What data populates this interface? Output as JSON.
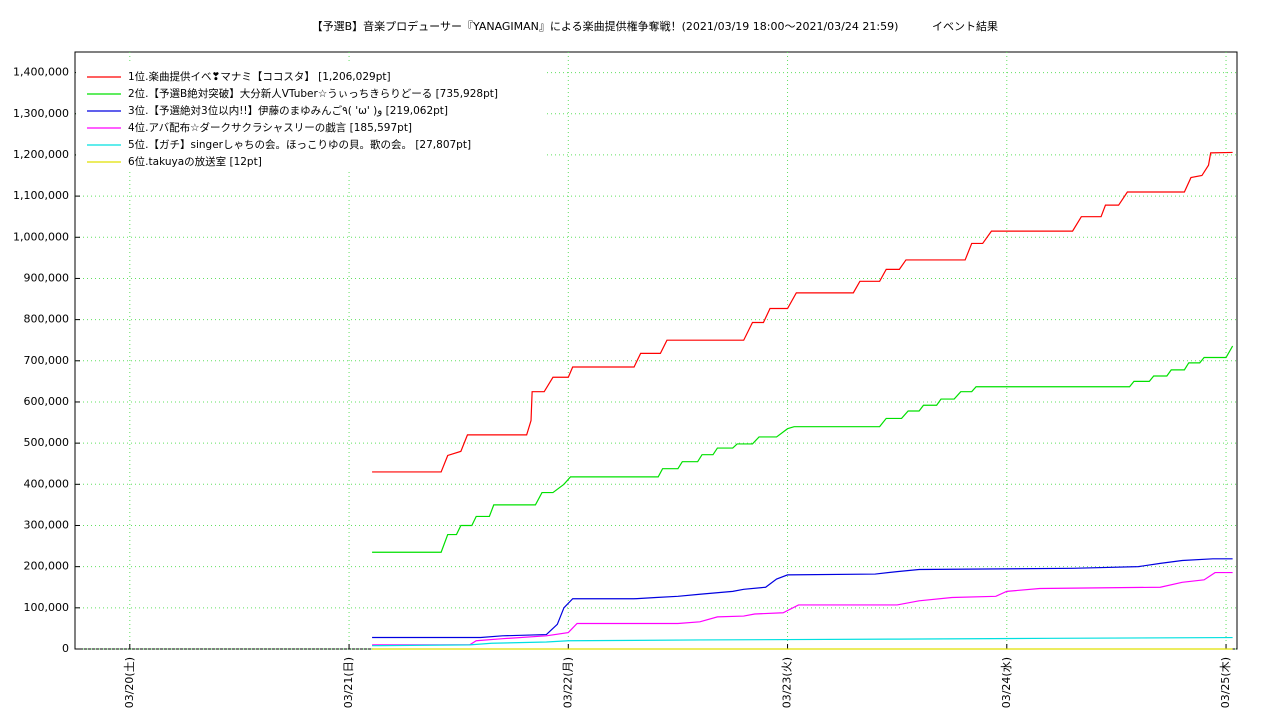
{
  "chart_data": {
    "type": "line",
    "title": "【予選B】音楽プロデューサー『YANAGIMAN』による楽曲提供権争奪戦！(2021/03/19 18:00〜2021/03/24 21:59)",
    "subtitle": "イベント結果",
    "xlim": [
      19.75,
      25.05
    ],
    "xticks": [
      {
        "value": 20,
        "label": "03/20(土)"
      },
      {
        "value": 21,
        "label": "03/21(日)"
      },
      {
        "value": 22,
        "label": "03/22(月)"
      },
      {
        "value": 23,
        "label": "03/23(火)"
      },
      {
        "value": 24,
        "label": "03/24(水)"
      },
      {
        "value": 25,
        "label": "03/25(木)"
      }
    ],
    "ylim": [
      0,
      1450000
    ],
    "yticks": [
      0,
      {
        "value": 100000,
        "label": "100,000"
      },
      {
        "value": 200000,
        "label": "200,000"
      },
      {
        "value": 300000,
        "label": "300,000"
      },
      {
        "value": 400000,
        "label": "400,000"
      },
      {
        "value": 500000,
        "label": "500,000"
      },
      {
        "value": 600000,
        "label": "600,000"
      },
      {
        "value": 700000,
        "label": "700,000"
      },
      {
        "value": 800000,
        "label": "800,000"
      },
      {
        "value": 900000,
        "label": "900,000"
      },
      {
        "value": 1000000,
        "label": "1,000,000"
      },
      {
        "value": 1100000,
        "label": "1,100,000"
      },
      {
        "value": 1200000,
        "label": "1,200,000"
      },
      {
        "value": 1300000,
        "label": "1,300,000"
      },
      {
        "value": 1400000,
        "label": "1,400,000"
      }
    ],
    "grid": true,
    "legend": "upper left",
    "series": [
      {
        "name": "1位.楽曲提供イベ❣マナミ【ココスタ】 [1,206,029pt]",
        "color": "#ff0000",
        "x": [
          21.105,
          21.42,
          21.45,
          21.51,
          21.54,
          21.81,
          21.83,
          21.835,
          21.89,
          21.93,
          22.0,
          22.02,
          22.3,
          22.33,
          22.42,
          22.45,
          22.8,
          22.84,
          22.89,
          22.92,
          23.0,
          23.04,
          23.3,
          23.33,
          23.42,
          23.45,
          23.51,
          23.54,
          23.81,
          23.84,
          23.89,
          23.93,
          24.3,
          24.34,
          24.43,
          24.45,
          24.51,
          24.55,
          24.81,
          24.84,
          24.89,
          24.92,
          24.93,
          25.03
        ],
        "values": [
          430000,
          430000,
          470000,
          480000,
          520000,
          520000,
          555000,
          625000,
          625000,
          660000,
          660000,
          685000,
          685000,
          718000,
          718000,
          750000,
          750000,
          793000,
          793000,
          827000,
          827000,
          865000,
          865000,
          893000,
          893000,
          922000,
          922000,
          945000,
          945000,
          985000,
          985000,
          1015000,
          1015000,
          1050000,
          1050000,
          1078000,
          1078000,
          1110000,
          1110000,
          1145000,
          1150000,
          1175000,
          1205000,
          1206029
        ]
      },
      {
        "name": "2位.【予選B絶対突破】大分新人VTuber☆うぃっちきらりどーる [735,928pt]",
        "color": "#00e000",
        "x": [
          21.105,
          21.42,
          21.45,
          21.49,
          21.51,
          21.56,
          21.58,
          21.64,
          21.66,
          21.85,
          21.88,
          21.93,
          21.98,
          22.01,
          22.41,
          22.43,
          22.5,
          22.52,
          22.59,
          22.61,
          22.66,
          22.68,
          22.75,
          22.77,
          22.84,
          22.87,
          22.95,
          23.0,
          23.03,
          23.42,
          23.45,
          23.52,
          23.55,
          23.6,
          23.62,
          23.68,
          23.7,
          23.76,
          23.79,
          23.84,
          23.86,
          24.56,
          24.58,
          24.65,
          24.67,
          24.73,
          24.75,
          24.81,
          24.83,
          24.88,
          24.9,
          25.0,
          25.03
        ],
        "values": [
          235000,
          235000,
          278000,
          278000,
          300000,
          300000,
          322000,
          322000,
          350000,
          350000,
          380000,
          380000,
          400000,
          418000,
          418000,
          438000,
          438000,
          455000,
          455000,
          472000,
          472000,
          488000,
          488000,
          498000,
          498000,
          515000,
          515000,
          535000,
          540000,
          540000,
          560000,
          560000,
          578000,
          578000,
          592000,
          592000,
          607000,
          607000,
          625000,
          625000,
          637000,
          637000,
          650000,
          650000,
          663000,
          663000,
          678000,
          678000,
          695000,
          695000,
          708000,
          708000,
          735928
        ]
      },
      {
        "name": "3位.【予選絶対3位以内!!】伊藤のまゆみんご٩( 'ω' )و [219,062pt]",
        "color": "#0000e0",
        "x": [
          21.105,
          21.6,
          21.7,
          21.9,
          21.95,
          21.98,
          22.02,
          22.3,
          22.4,
          22.5,
          22.6,
          22.75,
          22.8,
          22.9,
          22.95,
          23.0,
          23.4,
          23.5,
          23.6,
          24.3,
          24.6,
          24.7,
          24.8,
          24.94,
          25.03
        ],
        "values": [
          28000,
          28000,
          32000,
          35000,
          60000,
          100000,
          122000,
          122000,
          125000,
          128000,
          133000,
          140000,
          145000,
          150000,
          170000,
          180000,
          182000,
          188000,
          193000,
          196000,
          200000,
          208000,
          215000,
          219062,
          219062
        ]
      },
      {
        "name": "4位.アバ配布☆ダークサクラシャスリーの戯言 [185,597pt]",
        "color": "#ff00ff",
        "x": [
          21.105,
          21.55,
          21.58,
          21.7,
          21.9,
          22.0,
          22.04,
          22.5,
          22.6,
          22.68,
          22.8,
          22.85,
          22.98,
          23.05,
          23.5,
          23.6,
          23.75,
          23.95,
          24.0,
          24.15,
          24.7,
          24.8,
          24.9,
          24.95,
          25.03
        ],
        "values": [
          10000,
          10000,
          20000,
          25000,
          32000,
          40000,
          62000,
          62000,
          66000,
          78000,
          80000,
          85000,
          88000,
          107000,
          107000,
          117000,
          125000,
          128000,
          140000,
          147000,
          150000,
          162000,
          168000,
          185597,
          185597
        ]
      },
      {
        "name": "5位.【ガチ】singerしゃちの会。ほっこりゆの貝。歌の会。 [27,807pt]",
        "color": "#00e0e0",
        "x": [
          21.105,
          21.55,
          21.65,
          21.9,
          22.0,
          22.6,
          23.5,
          24.2,
          25.03
        ],
        "values": [
          8000,
          10000,
          14000,
          17000,
          20000,
          22000,
          24000,
          26000,
          27807
        ]
      },
      {
        "name": "6位.takuyaの放送室 [12pt]",
        "color": "#e0e000",
        "x": [
          21.105,
          25.03
        ],
        "values": [
          0,
          12
        ]
      }
    ]
  }
}
